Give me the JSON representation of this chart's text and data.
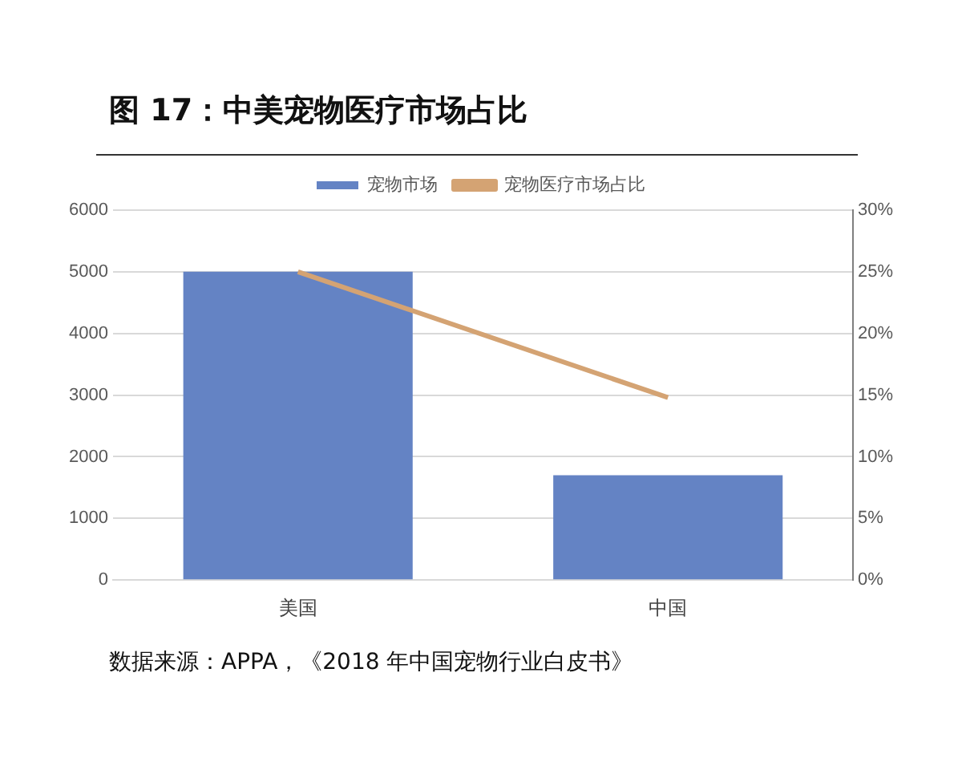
{
  "chart_data": {
    "type": "bar",
    "title": "图 17：中美宠物医疗市场占比",
    "categories": [
      "美国",
      "中国"
    ],
    "series": [
      {
        "name": "宠物市场",
        "color": "#6483c4",
        "values": [
          5000,
          1700
        ]
      },
      {
        "name": "宠物医疗市场占比",
        "type": "line",
        "axis": "y2",
        "color": "#d4a373",
        "values": [
          25,
          14.8
        ]
      }
    ],
    "ylim": [
      0,
      6000
    ],
    "yticks": [
      0,
      1000,
      2000,
      3000,
      4000,
      5000,
      6000
    ],
    "y2lim": [
      0,
      30
    ],
    "y2ticks": [
      {
        "value": 0,
        "label": "0%"
      },
      {
        "value": 5,
        "label": "5%"
      },
      {
        "value": 10,
        "label": "10%"
      },
      {
        "value": 15,
        "label": "15%"
      },
      {
        "value": 20,
        "label": "20%"
      },
      {
        "value": 25,
        "label": "25%"
      },
      {
        "value": 30,
        "label": "30%"
      }
    ],
    "grid": "y",
    "legend": "top",
    "marker": "none",
    "annotations": [
      "数据来源：APPA，《2018 年中国宠物行业白皮书》"
    ]
  }
}
